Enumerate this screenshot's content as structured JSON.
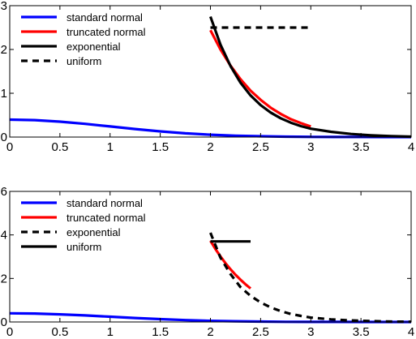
{
  "chart_data": [
    {
      "type": "line",
      "xlim": [
        0,
        4
      ],
      "ylim": [
        0,
        3
      ],
      "x_ticks": [
        "0",
        "0.5",
        "1",
        "1.5",
        "2",
        "2.5",
        "3",
        "3.5",
        "4"
      ],
      "y_ticks": [
        "0",
        "1",
        "2",
        "3"
      ],
      "grid": false,
      "legend_position": "top-left",
      "series": [
        {
          "name": "standard normal",
          "color": "#0000ff",
          "style": "solid",
          "x": [
            0,
            0.25,
            0.5,
            0.75,
            1,
            1.25,
            1.5,
            1.75,
            2,
            2.25,
            2.5,
            2.75,
            3,
            3.25,
            3.5,
            3.75,
            4
          ],
          "y": [
            0.399,
            0.387,
            0.352,
            0.301,
            0.242,
            0.183,
            0.13,
            0.086,
            0.054,
            0.032,
            0.018,
            0.009,
            0.004,
            0.002,
            0.001,
            0.0,
            0.0
          ]
        },
        {
          "name": "truncated normal",
          "color": "#ff0000",
          "style": "solid",
          "x": [
            2,
            2.1,
            2.2,
            2.3,
            2.4,
            2.5,
            2.6,
            2.7,
            2.8,
            2.9,
            3
          ],
          "y": [
            2.44,
            2.0,
            1.63,
            1.32,
            1.06,
            0.85,
            0.67,
            0.53,
            0.41,
            0.32,
            0.24
          ]
        },
        {
          "name": "exponential",
          "color": "#000000",
          "style": "solid",
          "x": [
            2,
            2.1,
            2.2,
            2.3,
            2.4,
            2.5,
            2.6,
            2.7,
            2.8,
            2.9,
            3,
            3.2,
            3.4,
            3.6,
            3.8,
            4
          ],
          "y": [
            2.75,
            2.11,
            1.62,
            1.24,
            0.95,
            0.73,
            0.56,
            0.43,
            0.33,
            0.25,
            0.19,
            0.12,
            0.07,
            0.04,
            0.02,
            0.01
          ]
        },
        {
          "name": "uniform",
          "color": "#000000",
          "style": "dashed",
          "x": [
            2,
            3
          ],
          "y": [
            2.5,
            2.5
          ]
        }
      ]
    },
    {
      "type": "line",
      "xlim": [
        0,
        4
      ],
      "ylim": [
        0,
        6
      ],
      "x_ticks": [
        "0",
        "0.5",
        "1",
        "1.5",
        "2",
        "2.5",
        "3",
        "3.5",
        "4"
      ],
      "y_ticks": [
        "0",
        "2",
        "4",
        "6"
      ],
      "grid": false,
      "legend_position": "top-left",
      "series": [
        {
          "name": "standard normal",
          "color": "#0000ff",
          "style": "solid",
          "x": [
            0,
            0.25,
            0.5,
            0.75,
            1,
            1.25,
            1.5,
            1.75,
            2,
            2.25,
            2.5,
            2.75,
            3,
            3.25,
            3.5,
            3.75,
            4
          ],
          "y": [
            0.399,
            0.387,
            0.352,
            0.301,
            0.242,
            0.183,
            0.13,
            0.086,
            0.054,
            0.032,
            0.018,
            0.009,
            0.004,
            0.002,
            0.001,
            0.0,
            0.0
          ]
        },
        {
          "name": "truncated normal",
          "color": "#ff0000",
          "style": "solid",
          "x": [
            2,
            2.05,
            2.1,
            2.15,
            2.2,
            2.25,
            2.3,
            2.35,
            2.4
          ],
          "y": [
            3.73,
            3.35,
            3.01,
            2.7,
            2.42,
            2.17,
            1.94,
            1.73,
            1.54
          ]
        },
        {
          "name": "exponential",
          "color": "#000000",
          "style": "dashed",
          "x": [
            2,
            2.1,
            2.2,
            2.3,
            2.4,
            2.5,
            2.6,
            2.7,
            2.8,
            2.9,
            3,
            3.2,
            3.4,
            3.6,
            3.8,
            4
          ],
          "y": [
            4.1,
            2.95,
            2.2,
            1.6,
            1.2,
            0.9,
            0.67,
            0.5,
            0.37,
            0.28,
            0.2,
            0.12,
            0.07,
            0.04,
            0.02,
            0.01
          ]
        },
        {
          "name": "uniform",
          "color": "#000000",
          "style": "solid",
          "x": [
            2,
            2.4
          ],
          "y": [
            3.7,
            3.7
          ]
        }
      ]
    }
  ]
}
